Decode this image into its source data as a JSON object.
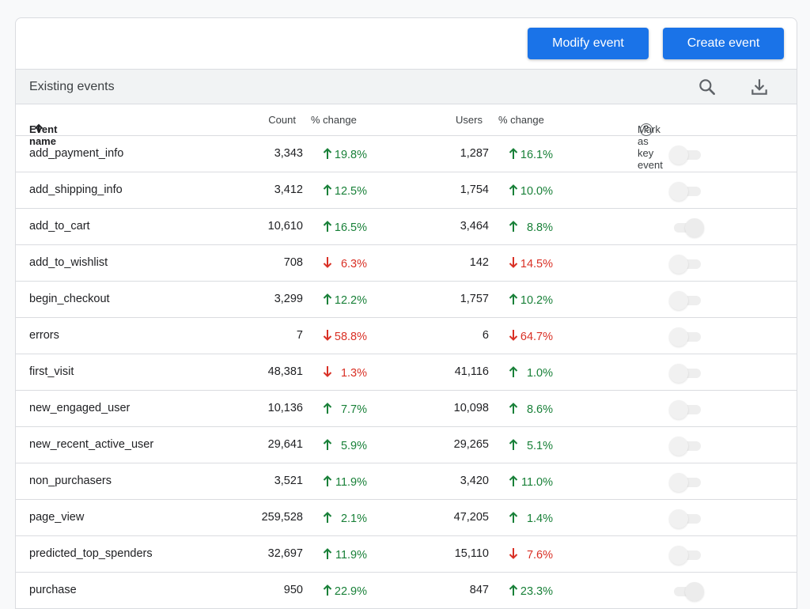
{
  "toolbar": {
    "modify_label": "Modify event",
    "create_label": "Create event"
  },
  "section": {
    "title": "Existing events",
    "search_icon": "search-icon",
    "download_icon": "download-icon"
  },
  "columns": {
    "event_name": "Event name",
    "count": "Count",
    "count_change": "% change",
    "users": "Users",
    "users_change": "% change",
    "key_event": "Mark as key event",
    "help": "?"
  },
  "colors": {
    "primary": "#1a73e8",
    "up": "#188038",
    "down": "#d93025"
  },
  "events": [
    {
      "name": "add_payment_info",
      "count": "3,343",
      "count_change": "19.8%",
      "count_dir": "up",
      "users": "1,287",
      "users_change": "16.1%",
      "users_dir": "up",
      "key_event": false
    },
    {
      "name": "add_shipping_info",
      "count": "3,412",
      "count_change": "12.5%",
      "count_dir": "up",
      "users": "1,754",
      "users_change": "10.0%",
      "users_dir": "up",
      "key_event": false
    },
    {
      "name": "add_to_cart",
      "count": "10,610",
      "count_change": "16.5%",
      "count_dir": "up",
      "users": "3,464",
      "users_change": "8.8%",
      "users_dir": "up",
      "key_event": true
    },
    {
      "name": "add_to_wishlist",
      "count": "708",
      "count_change": "6.3%",
      "count_dir": "down",
      "users": "142",
      "users_change": "14.5%",
      "users_dir": "down",
      "key_event": false
    },
    {
      "name": "begin_checkout",
      "count": "3,299",
      "count_change": "12.2%",
      "count_dir": "up",
      "users": "1,757",
      "users_change": "10.2%",
      "users_dir": "up",
      "key_event": false
    },
    {
      "name": "errors",
      "count": "7",
      "count_change": "58.8%",
      "count_dir": "down",
      "users": "6",
      "users_change": "64.7%",
      "users_dir": "down",
      "key_event": false
    },
    {
      "name": "first_visit",
      "count": "48,381",
      "count_change": "1.3%",
      "count_dir": "down",
      "users": "41,116",
      "users_change": "1.0%",
      "users_dir": "up",
      "key_event": false
    },
    {
      "name": "new_engaged_user",
      "count": "10,136",
      "count_change": "7.7%",
      "count_dir": "up",
      "users": "10,098",
      "users_change": "8.6%",
      "users_dir": "up",
      "key_event": false
    },
    {
      "name": "new_recent_active_user",
      "count": "29,641",
      "count_change": "5.9%",
      "count_dir": "up",
      "users": "29,265",
      "users_change": "5.1%",
      "users_dir": "up",
      "key_event": false
    },
    {
      "name": "non_purchasers",
      "count": "3,521",
      "count_change": "11.9%",
      "count_dir": "up",
      "users": "3,420",
      "users_change": "11.0%",
      "users_dir": "up",
      "key_event": false
    },
    {
      "name": "page_view",
      "count": "259,528",
      "count_change": "2.1%",
      "count_dir": "up",
      "users": "47,205",
      "users_change": "1.4%",
      "users_dir": "up",
      "key_event": false
    },
    {
      "name": "predicted_top_spenders",
      "count": "32,697",
      "count_change": "11.9%",
      "count_dir": "up",
      "users": "15,110",
      "users_change": "7.6%",
      "users_dir": "down",
      "key_event": false
    },
    {
      "name": "purchase",
      "count": "950",
      "count_change": "22.9%",
      "count_dir": "up",
      "users": "847",
      "users_change": "23.3%",
      "users_dir": "up",
      "key_event": true
    }
  ]
}
